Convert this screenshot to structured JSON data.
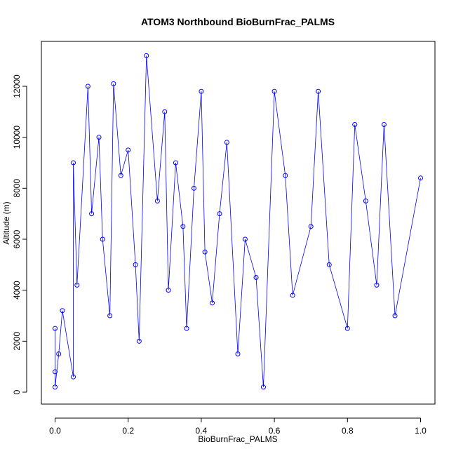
{
  "chart_data": {
    "type": "scatter",
    "title": "ATOM3 Northbound BioBurnFrac_PALMS",
    "xlabel": "BioBurnFrac_PALMS",
    "ylabel": "Altitude (m)",
    "xlim": [
      0.0,
      1.0
    ],
    "ylim": [
      0,
      13000
    ],
    "x_ticks": [
      "0.0",
      "0.2",
      "0.4",
      "0.6",
      "0.8",
      "1.0"
    ],
    "y_ticks": [
      "0",
      "2000",
      "4000",
      "6000",
      "8000",
      "10000",
      "12000"
    ],
    "x_tick_values": [
      0.0,
      0.2,
      0.4,
      0.6,
      0.8,
      1.0
    ],
    "y_tick_values": [
      0,
      2000,
      4000,
      6000,
      8000,
      10000,
      12000
    ],
    "grid": false,
    "legend": "none",
    "color": "#0000FF",
    "marker": "open-circle",
    "connected": true,
    "series": [
      {
        "x": [
          0.0,
          0.0,
          0.0,
          0.01,
          0.02,
          0.05,
          0.05,
          0.06,
          0.09,
          0.1,
          0.12,
          0.13,
          0.15,
          0.16,
          0.18,
          0.2,
          0.22,
          0.23,
          0.25,
          0.28,
          0.3,
          0.31,
          0.33,
          0.35,
          0.36,
          0.38,
          0.4,
          0.41,
          0.43,
          0.45,
          0.47,
          0.5,
          0.52,
          0.55,
          0.57,
          0.6,
          0.63,
          0.65,
          0.7,
          0.72,
          0.75,
          0.8,
          0.82,
          0.85,
          0.88,
          0.9,
          0.93,
          1.0
        ],
        "y": [
          2500,
          800,
          200,
          1500,
          3200,
          600,
          9000,
          4200,
          12000,
          7000,
          10000,
          6000,
          3000,
          12100,
          8500,
          9500,
          5000,
          2000,
          13200,
          7500,
          11000,
          4000,
          9000,
          6500,
          2500,
          8000,
          11800,
          5500,
          3500,
          7000,
          9800,
          1500,
          6000,
          4500,
          200,
          11800,
          8500,
          3800,
          6500,
          11800,
          5000,
          2500,
          10500,
          7500,
          4200,
          10500,
          3000,
          8400
        ]
      }
    ]
  }
}
